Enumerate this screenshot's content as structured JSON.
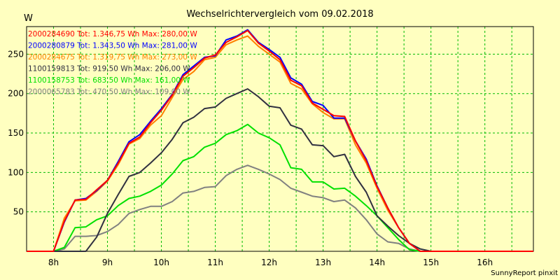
{
  "chart_data": {
    "type": "line",
    "title": "Wechselrichtervergleich vom 09.02.2018",
    "ylabel": "W",
    "xlabel": "",
    "footer": "SunnyReport pinxit",
    "xlim": [
      7.5,
      16.9
    ],
    "ylim": [
      0,
      285
    ],
    "grid": true,
    "background": "#ffffc0",
    "grid_color": "#00bb00",
    "legend_position": "top-left",
    "x_ticks": [
      8,
      9,
      10,
      11,
      12,
      13,
      14,
      15,
      16
    ],
    "x_tick_labels": [
      "8h",
      "9h",
      "10h",
      "11h",
      "12h",
      "13h",
      "14h",
      "15h",
      "16h"
    ],
    "y_ticks": [
      50,
      100,
      150,
      200,
      250
    ],
    "y_tick_labels": [
      "50",
      "100",
      "150",
      "200",
      "250"
    ],
    "x": [
      7.5,
      7.6,
      7.8,
      8.0,
      8.2,
      8.4,
      8.6,
      8.8,
      9.0,
      9.2,
      9.4,
      9.6,
      9.8,
      10.0,
      10.2,
      10.4,
      10.6,
      10.8,
      11.0,
      11.2,
      11.4,
      11.6,
      11.8,
      12.0,
      12.2,
      12.4,
      12.6,
      12.8,
      13.0,
      13.2,
      13.4,
      13.6,
      13.8,
      14.0,
      14.2,
      14.4,
      14.6,
      14.8,
      15.0,
      15.2,
      15.4,
      15.6,
      15.8,
      16.0,
      16.2,
      16.4,
      16.6,
      16.8,
      16.9
    ],
    "series": [
      {
        "name": "2000284690",
        "legend": "2000284690 Tot: 1.346,75 Wh Max: 280,00 W",
        "color": "#ff0000",
        "values": [
          0,
          0,
          0,
          0,
          38,
          65,
          66,
          78,
          90,
          112,
          137,
          145,
          163,
          179,
          198,
          222,
          233,
          245,
          249,
          265,
          272,
          280,
          264,
          254,
          243,
          217,
          210,
          188,
          180,
          172,
          171,
          140,
          115,
          82,
          55,
          30,
          10,
          0,
          0,
          0,
          0,
          0,
          0,
          0,
          0,
          0,
          0,
          0,
          0
        ]
      },
      {
        "name": "2000280879",
        "legend": "2000280879 Tot: 1.343,50 Wh Max: 281,00 W",
        "color": "#0000ff",
        "values": [
          0,
          0,
          0,
          0,
          37,
          65,
          67,
          77,
          90,
          114,
          139,
          148,
          165,
          181,
          199,
          224,
          235,
          246,
          248,
          268,
          273,
          281,
          265,
          256,
          246,
          220,
          212,
          190,
          185,
          169,
          169,
          140,
          117,
          83,
          55,
          30,
          10,
          0,
          0,
          0,
          0,
          0,
          0,
          0,
          0,
          0,
          0,
          0,
          0
        ]
      },
      {
        "name": "2000284675",
        "legend": "2000284675 Tot: 1.319,75 Wh Max: 273,00 W",
        "color": "#ff8000",
        "values": [
          0,
          0,
          0,
          0,
          42,
          64,
          65,
          76,
          89,
          110,
          136,
          143,
          160,
          172,
          195,
          218,
          228,
          243,
          246,
          262,
          268,
          273,
          260,
          250,
          240,
          213,
          206,
          187,
          176,
          168,
          168,
          135,
          112,
          80,
          52,
          30,
          10,
          0,
          0,
          0,
          0,
          0,
          0,
          0,
          0,
          0,
          0,
          0,
          0
        ]
      },
      {
        "name": "1100159813",
        "legend": "1100159813 Tot: 919,50 Wh Max: 206,00 W",
        "color": "#303040",
        "values": [
          0,
          0,
          0,
          0,
          0,
          0,
          0,
          18,
          48,
          72,
          95,
          100,
          112,
          125,
          142,
          163,
          170,
          181,
          183,
          194,
          200,
          206,
          196,
          184,
          182,
          160,
          155,
          135,
          134,
          120,
          123,
          95,
          75,
          45,
          32,
          20,
          10,
          3,
          0,
          0,
          0,
          0,
          0,
          0,
          0,
          0,
          0,
          0,
          0
        ]
      },
      {
        "name": "1100158753",
        "legend": "1100158753 Tot: 683,50 Wh Max: 161,00 W",
        "color": "#00e000",
        "values": [
          0,
          0,
          0,
          0,
          5,
          30,
          31,
          40,
          45,
          58,
          67,
          70,
          76,
          84,
          98,
          115,
          120,
          132,
          137,
          148,
          153,
          161,
          150,
          144,
          135,
          106,
          104,
          88,
          88,
          79,
          80,
          70,
          58,
          45,
          30,
          15,
          2,
          0,
          0,
          0,
          0,
          0,
          0,
          0,
          0,
          0,
          0,
          0,
          0
        ]
      },
      {
        "name": "2000065783",
        "legend": "2000065783 Tot: 470,50 Wh Max: 109,00 W",
        "color": "#808080",
        "values": [
          0,
          0,
          0,
          0,
          3,
          19,
          19,
          20,
          25,
          34,
          48,
          53,
          57,
          57,
          63,
          74,
          76,
          81,
          82,
          96,
          104,
          109,
          104,
          98,
          91,
          80,
          75,
          70,
          68,
          63,
          65,
          55,
          40,
          22,
          12,
          10,
          3,
          0,
          0,
          0,
          0,
          0,
          0,
          0,
          0,
          0,
          0,
          0,
          0
        ]
      }
    ]
  }
}
